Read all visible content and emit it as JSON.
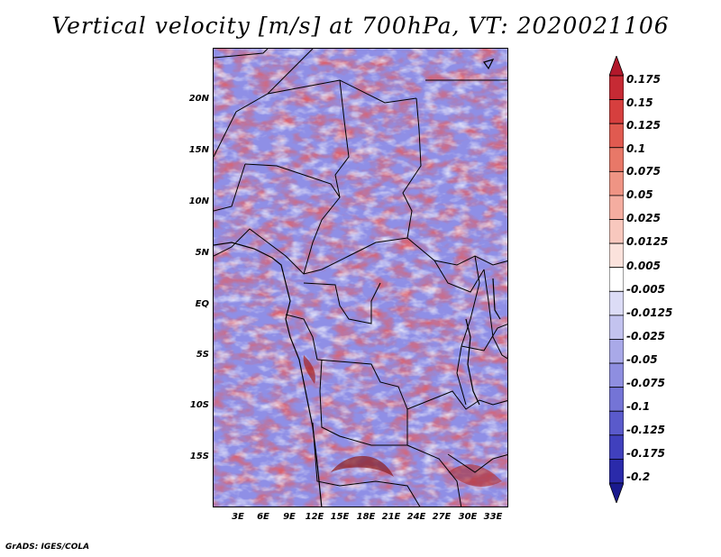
{
  "title": "Vertical velocity [m/s] at 700hPa, VT: 2020021106",
  "credit": "GrADS: IGES/COLA",
  "map": {
    "lat_labels": [
      "20N",
      "15N",
      "10N",
      "5N",
      "EQ",
      "5S",
      "10S",
      "15S"
    ],
    "lon_labels": [
      "3E",
      "6E",
      "9E",
      "12E",
      "15E",
      "18E",
      "21E",
      "24E",
      "27E",
      "30E",
      "33E"
    ]
  },
  "colorbar": {
    "labels": [
      "0.175",
      "0.15",
      "0.125",
      "0.1",
      "0.075",
      "0.05",
      "0.025",
      "0.0125",
      "0.005",
      "-0.005",
      "-0.0125",
      "-0.025",
      "-0.05",
      "-0.075",
      "-0.1",
      "-0.125",
      "-0.175",
      "-0.2"
    ],
    "colors": [
      "#b2182b",
      "#c62a34",
      "#d63f3e",
      "#e05a50",
      "#e87868",
      "#ef9484",
      "#f4ada0",
      "#f8c8be",
      "#fbe2dc",
      "#ffffff",
      "#dcdcf6",
      "#c3c3ef",
      "#a9a9e8",
      "#8e8ee0",
      "#7474d6",
      "#5a5acb",
      "#4040bd",
      "#2a2aaa",
      "#1a1a8e"
    ]
  }
}
